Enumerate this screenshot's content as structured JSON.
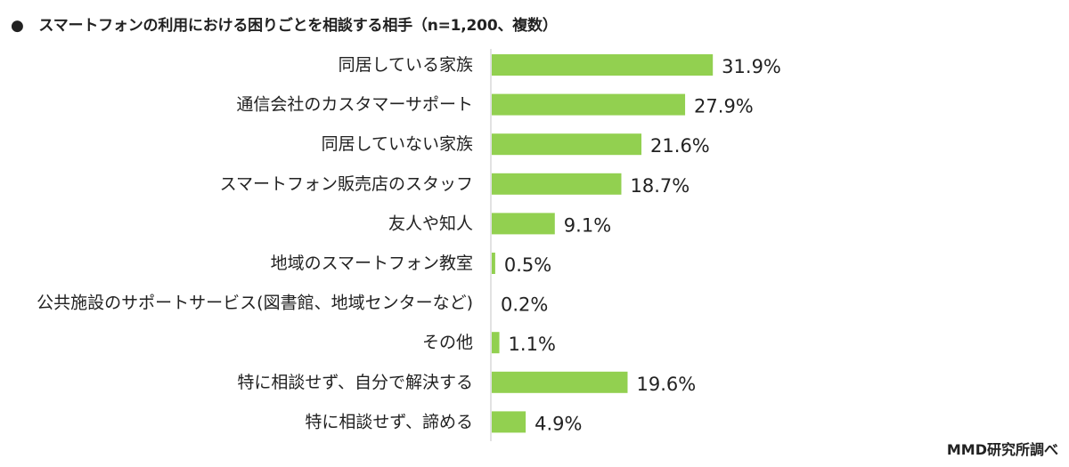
{
  "title": "●　スマートフォンの利用における困りごとを相談する相手（n=1,200、複数）",
  "source": "MMD研究所調べ",
  "chart_data": {
    "type": "bar",
    "orientation": "horizontal",
    "unit": "%",
    "categories": [
      "同居している家族",
      "通信会社のカスタマーサポート",
      "同居していない家族",
      "スマートフォン販売店のスタッフ",
      "友人や知人",
      "地域のスマートフォン教室",
      "公共施設のサポートサービス(図書館、地域センターなど)",
      "その他",
      "特に相談せず、自分で解決する",
      "特に相談せず、諦める"
    ],
    "values": [
      31.9,
      27.9,
      21.6,
      18.7,
      9.1,
      0.5,
      0.2,
      1.1,
      19.6,
      4.9
    ],
    "value_labels": [
      "31.9%",
      "27.9%",
      "21.6%",
      "18.7%",
      "9.1%",
      "0.5%",
      "0.2%",
      "1.1%",
      "19.6%",
      "4.9%"
    ],
    "bar_color": "#92d050",
    "axis_color": "#d9d9d9",
    "grid": false,
    "legend": "none"
  }
}
